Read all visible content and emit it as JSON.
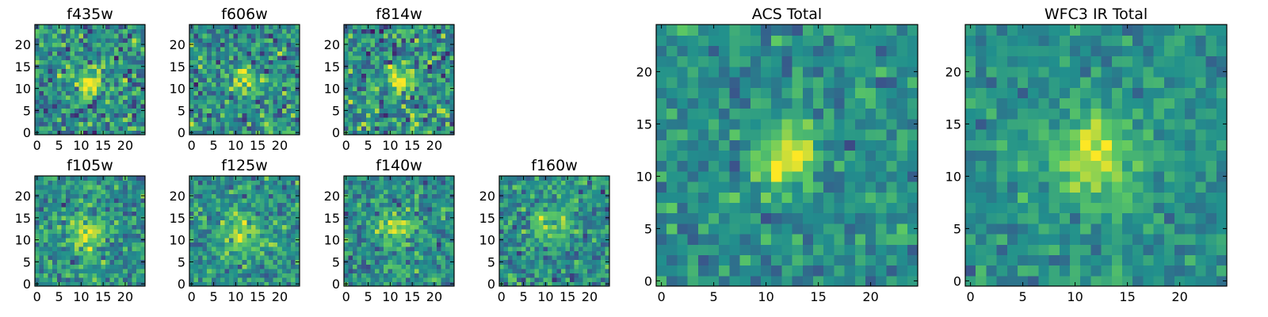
{
  "figure": {
    "colormap": "viridis",
    "colormap_stops": [
      "#440154",
      "#3b528b",
      "#21908d",
      "#5dc963",
      "#fde725"
    ],
    "frame_color": "#000000"
  },
  "chart_data": [
    {
      "type": "heatmap",
      "title": "f435w",
      "grid_size": 25,
      "xlim": [
        0,
        24
      ],
      "ylim": [
        0,
        24
      ],
      "xticks": [
        "0",
        "5",
        "10",
        "15",
        "20"
      ],
      "yticks": [
        "0",
        "5",
        "10",
        "15",
        "20"
      ],
      "source_center": [
        12.3,
        11.6
      ],
      "source_width": 1.9,
      "source_peak": 0.5,
      "noise": 0.35,
      "seed": 101
    },
    {
      "type": "heatmap",
      "title": "f606w",
      "grid_size": 25,
      "xlim": [
        0,
        24
      ],
      "ylim": [
        0,
        24
      ],
      "xticks": [
        "0",
        "5",
        "10",
        "15",
        "20"
      ],
      "yticks": [
        "0",
        "5",
        "10",
        "15",
        "20"
      ],
      "source_center": [
        12.8,
        11.8
      ],
      "source_width": 2.0,
      "source_peak": 0.45,
      "noise": 0.32,
      "seed": 202
    },
    {
      "type": "heatmap",
      "title": "f814w",
      "grid_size": 25,
      "xlim": [
        0,
        24
      ],
      "ylim": [
        0,
        24
      ],
      "xticks": [
        "0",
        "5",
        "10",
        "15",
        "20"
      ],
      "yticks": [
        "0",
        "5",
        "10",
        "15",
        "20"
      ],
      "source_center": [
        12.3,
        12.0
      ],
      "source_width": 2.0,
      "source_peak": 0.48,
      "noise": 0.34,
      "seed": 303
    },
    {
      "type": "heatmap",
      "title": "f105w",
      "grid_size": 25,
      "xlim": [
        0,
        24
      ],
      "ylim": [
        0,
        24
      ],
      "xticks": [
        "0",
        "5",
        "10",
        "15",
        "20"
      ],
      "yticks": [
        "0",
        "5",
        "10",
        "15",
        "20"
      ],
      "source_center": [
        11.5,
        11.5
      ],
      "source_width": 3.0,
      "source_peak": 0.35,
      "noise": 0.26,
      "seed": 404
    },
    {
      "type": "heatmap",
      "title": "f125w",
      "grid_size": 25,
      "xlim": [
        0,
        24
      ],
      "ylim": [
        0,
        24
      ],
      "xticks": [
        "0",
        "5",
        "10",
        "15",
        "20"
      ],
      "yticks": [
        "0",
        "5",
        "10",
        "15",
        "20"
      ],
      "source_center": [
        11.5,
        11.0
      ],
      "source_width": 3.2,
      "source_peak": 0.3,
      "noise": 0.26,
      "seed": 505
    },
    {
      "type": "heatmap",
      "title": "f140w",
      "grid_size": 25,
      "xlim": [
        0,
        24
      ],
      "ylim": [
        0,
        24
      ],
      "xticks": [
        "0",
        "5",
        "10",
        "15",
        "20"
      ],
      "yticks": [
        "0",
        "5",
        "10",
        "15",
        "20"
      ],
      "source_center": [
        11.0,
        12.5
      ],
      "source_width": 2.8,
      "source_peak": 0.32,
      "noise": 0.27,
      "seed": 606
    },
    {
      "type": "heatmap",
      "title": "f160w",
      "grid_size": 25,
      "xlim": [
        0,
        24
      ],
      "ylim": [
        0,
        24
      ],
      "xticks": [
        "0",
        "5",
        "10",
        "15",
        "20"
      ],
      "yticks": [
        "0",
        "5",
        "10",
        "15",
        "20"
      ],
      "source_center": [
        11.5,
        13.0
      ],
      "source_width": 3.0,
      "source_peak": 0.3,
      "noise": 0.28,
      "seed": 707
    },
    {
      "type": "heatmap",
      "title": "ACS Total",
      "grid_size": 25,
      "xlim": [
        0,
        24
      ],
      "ylim": [
        0,
        24
      ],
      "xticks": [
        "0",
        "5",
        "10",
        "15",
        "20"
      ],
      "yticks": [
        "0",
        "5",
        "10",
        "15",
        "20"
      ],
      "source_center": [
        12.0,
        11.8
      ],
      "source_width": 1.9,
      "source_peak": 0.55,
      "noise": 0.2,
      "seed": 808
    },
    {
      "type": "heatmap",
      "title": "WFC3 IR Total",
      "grid_size": 25,
      "xlim": [
        0,
        24
      ],
      "ylim": [
        0,
        24
      ],
      "xticks": [
        "0",
        "5",
        "10",
        "15",
        "20"
      ],
      "yticks": [
        "0",
        "5",
        "10",
        "15",
        "20"
      ],
      "source_center": [
        12.0,
        12.3
      ],
      "source_width": 3.0,
      "source_peak": 0.42,
      "noise": 0.18,
      "seed": 909
    }
  ]
}
